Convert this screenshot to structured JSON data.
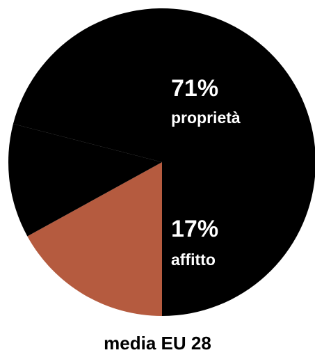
{
  "chart_data": {
    "type": "pie",
    "slices": [
      {
        "label": "proprietà",
        "value": 71,
        "value_text": "71%",
        "color": "#000000"
      },
      {
        "label": "affitto",
        "value": 17,
        "value_text": "17%",
        "color": "#b55b3f"
      },
      {
        "label": "",
        "value": 12,
        "value_text": "",
        "color": "#000000"
      }
    ],
    "caption": "media EU 28",
    "slice_edge_color": "#9c4b33"
  }
}
